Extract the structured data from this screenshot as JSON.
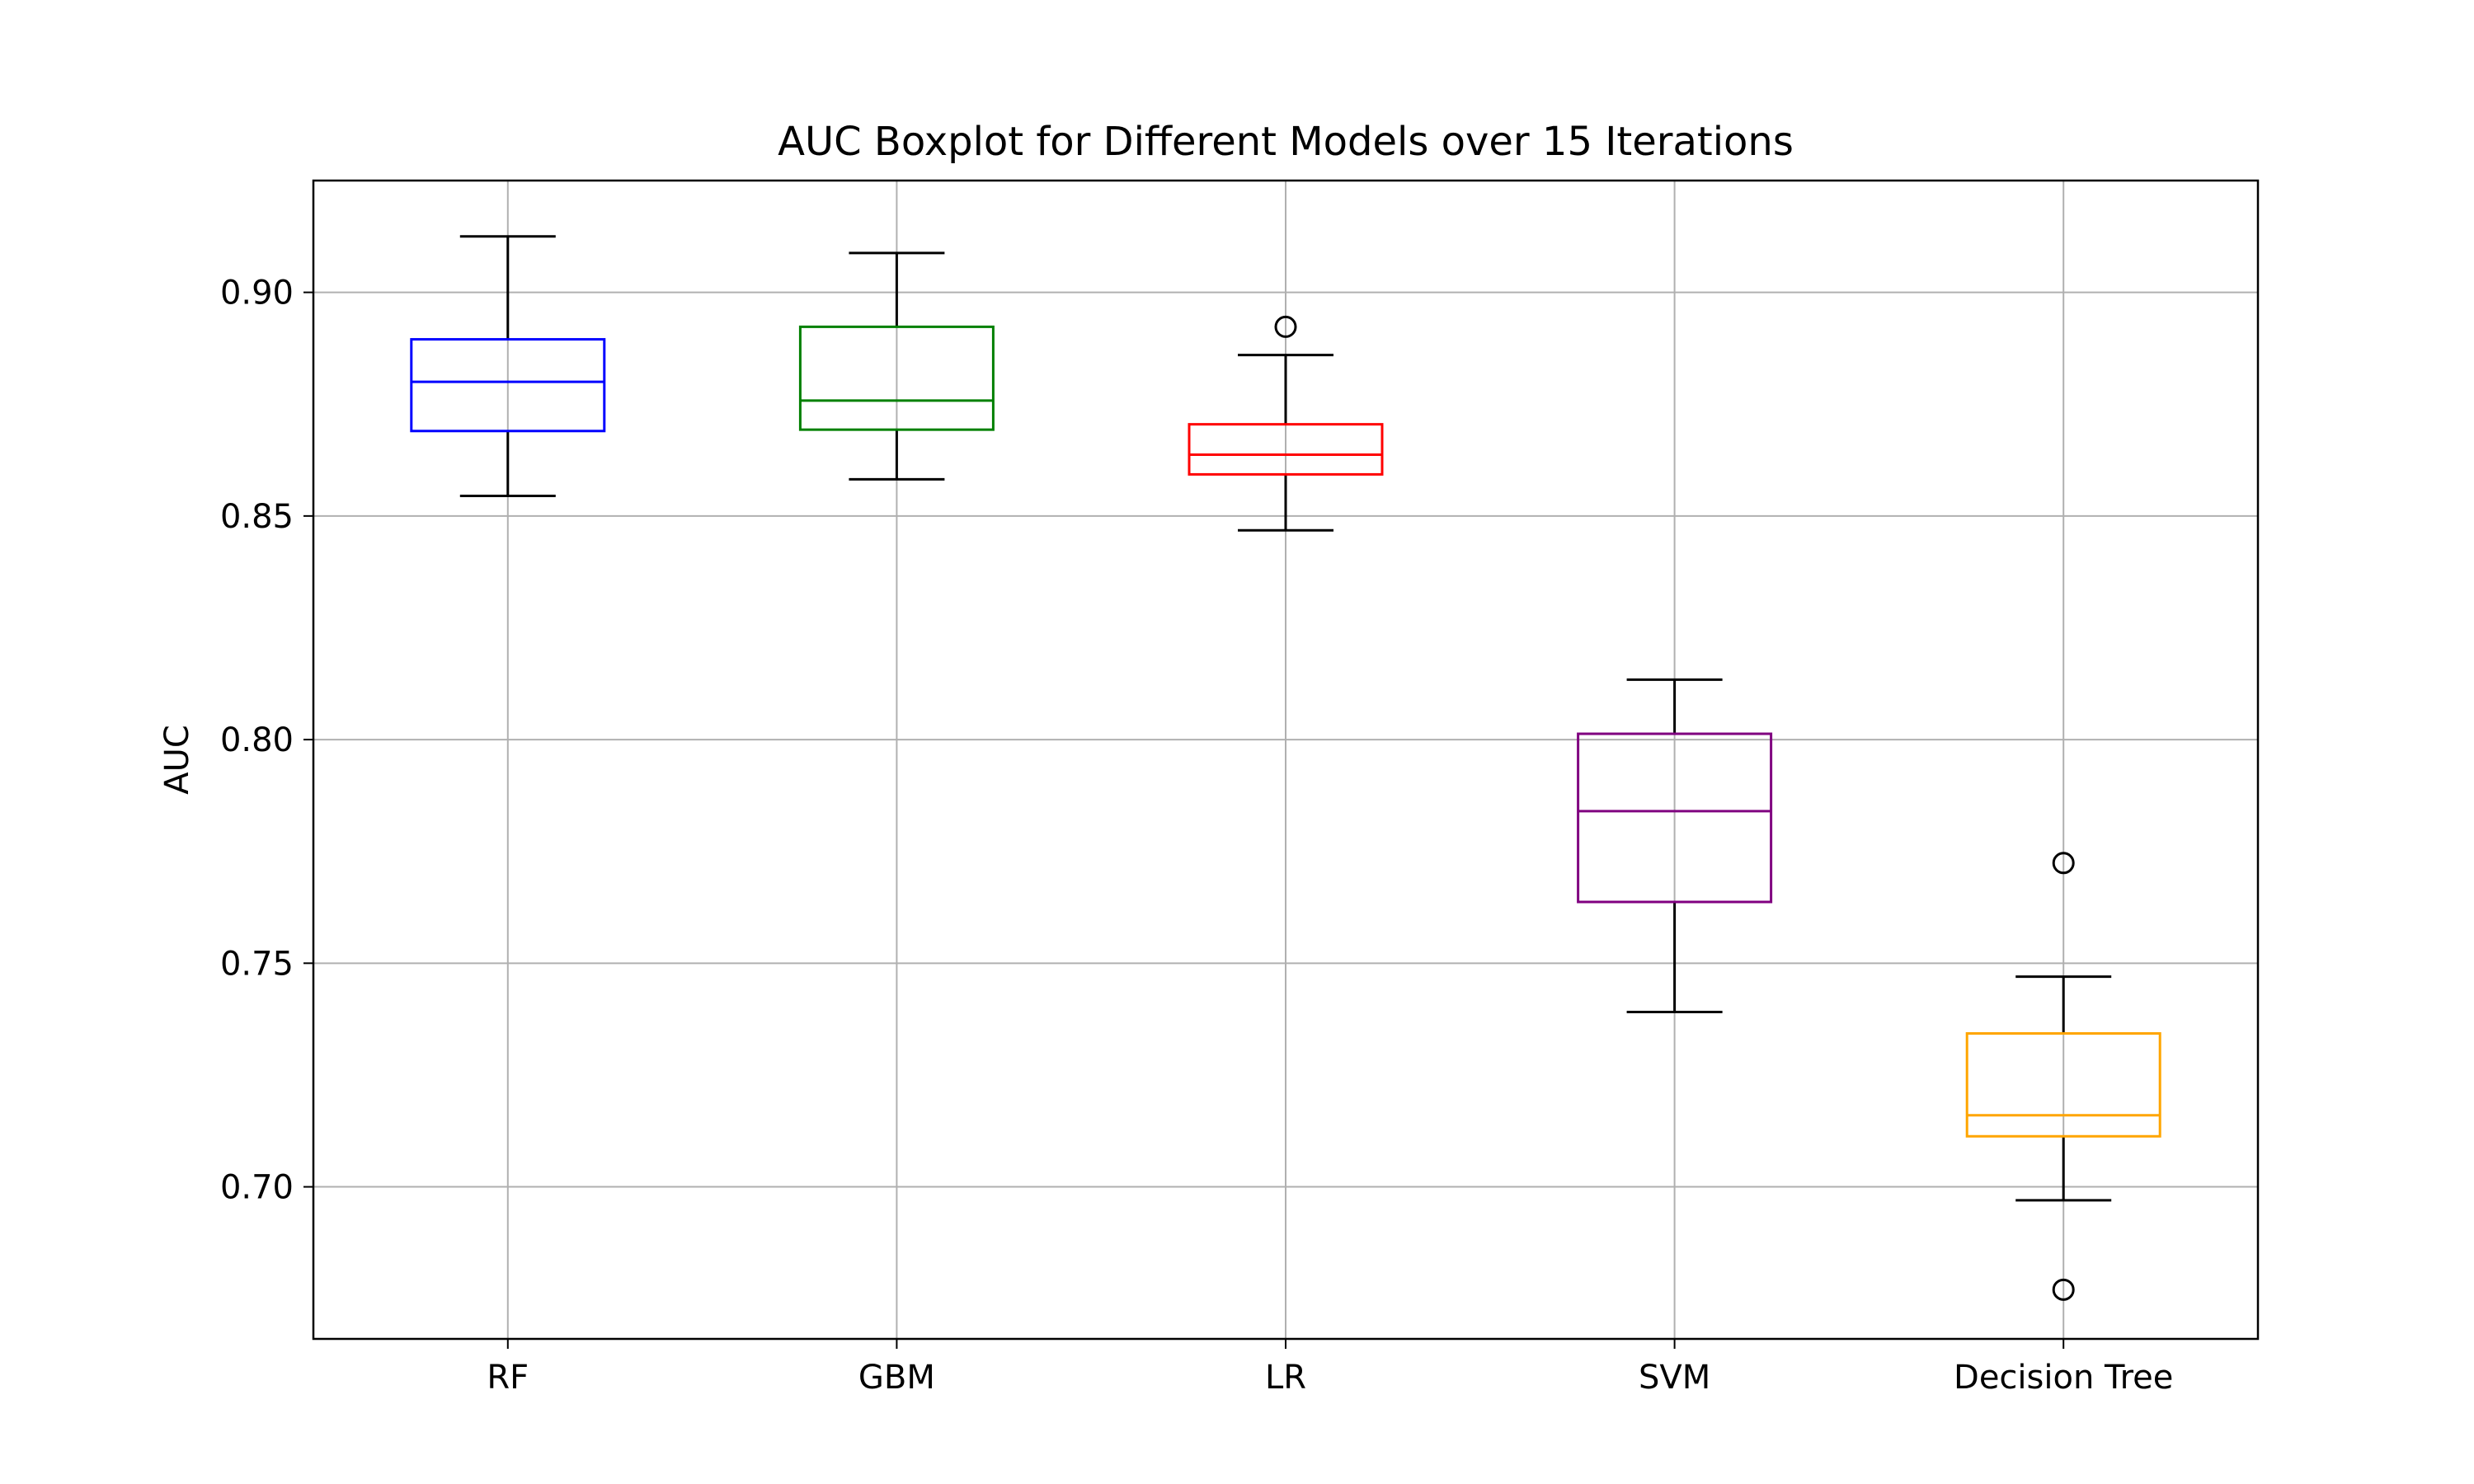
{
  "chart_data": {
    "type": "boxplot",
    "title": "AUC Boxplot for Different Models over 15 Iterations",
    "xlabel": "",
    "ylabel": "AUC",
    "ylim": [
      0.666,
      0.925
    ],
    "yticks": [
      "0.70",
      "0.75",
      "0.80",
      "0.85",
      "0.90"
    ],
    "yticks_values": [
      0.7,
      0.75,
      0.8,
      0.85,
      0.9
    ],
    "grid": true,
    "categories": [
      "RF",
      "GBM",
      "LR",
      "SVM",
      "Decision Tree"
    ],
    "boxes": [
      {
        "name": "RF",
        "color": "#0000ff",
        "whisker_low": 0.8545,
        "q1": 0.869,
        "median": 0.88,
        "q3": 0.8895,
        "whisker_high": 0.9125,
        "outliers": []
      },
      {
        "name": "GBM",
        "color": "#008000",
        "whisker_low": 0.8582,
        "q1": 0.8693,
        "median": 0.8758,
        "q3": 0.8923,
        "whisker_high": 0.9088,
        "outliers": []
      },
      {
        "name": "LR",
        "color": "#ff0000",
        "whisker_low": 0.8468,
        "q1": 0.8593,
        "median": 0.8637,
        "q3": 0.8705,
        "whisker_high": 0.886,
        "outliers": [
          0.8923
        ]
      },
      {
        "name": "SVM",
        "color": "#800080",
        "whisker_low": 0.7391,
        "q1": 0.7637,
        "median": 0.784,
        "q3": 0.8013,
        "whisker_high": 0.8134,
        "outliers": []
      },
      {
        "name": "Decision Tree",
        "color": "#ffa500",
        "whisker_low": 0.697,
        "q1": 0.7113,
        "median": 0.716,
        "q3": 0.7343,
        "whisker_high": 0.747,
        "outliers": [
          0.7724,
          0.677
        ]
      }
    ]
  }
}
